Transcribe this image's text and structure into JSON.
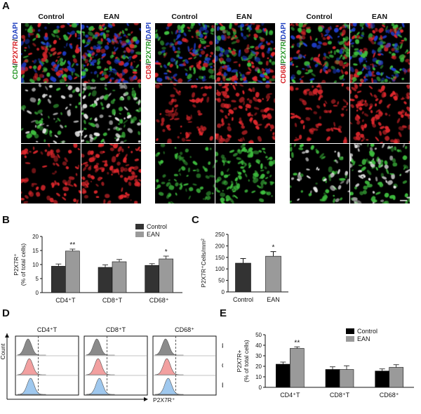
{
  "panels": {
    "a": "A",
    "b": "B",
    "c": "C",
    "d": "D",
    "e": "E"
  },
  "panel_a": {
    "col_headers": [
      "Control",
      "EAN",
      "Control",
      "EAN",
      "Control",
      "EAN"
    ],
    "group1_label": {
      "p1": "CD4",
      "p2": "/",
      "p3": "P2X7R",
      "p4": "/",
      "p5": "DAPI"
    },
    "group2_label": {
      "p1": "CD8",
      "p2": "/",
      "p3": "P2X7R",
      "p4": "/",
      "p5": "DAPI"
    },
    "group3_label": {
      "p1": "CD68",
      "p2": "/",
      "p3": "P2X7R",
      "p4": "/",
      "p5": "DAPI"
    },
    "colors": {
      "red": "#e0282d",
      "green": "#3fbf3f",
      "blue": "#2040d0",
      "white": "#e8e8e8"
    }
  },
  "chart_data": [
    {
      "id": "B",
      "type": "bar",
      "categories": [
        "CD4⁺T",
        "CD8⁺T",
        "CD68⁺"
      ],
      "series": [
        {
          "name": "Control",
          "values": [
            9.4,
            9.0,
            9.7
          ],
          "errors": [
            0.8,
            0.9,
            0.6
          ],
          "color": "#333333"
        },
        {
          "name": "EAN",
          "values": [
            14.8,
            11.0,
            12.0
          ],
          "errors": [
            0.7,
            0.8,
            1.0
          ],
          "color": "#9a9a9a"
        }
      ],
      "ylabel": "P2X7R⁺",
      "ylabel2": "(% of total cells)",
      "ylim": [
        0,
        20
      ],
      "yticks": [
        "0",
        "5",
        "10",
        "15",
        "20"
      ],
      "significance": [
        "**",
        "",
        "*"
      ],
      "legend": "top-right"
    },
    {
      "id": "C",
      "type": "bar",
      "categories": [
        "Control",
        "EAN"
      ],
      "values": [
        125,
        155
      ],
      "errors": [
        20,
        20
      ],
      "colors": [
        "#333333",
        "#9a9a9a"
      ],
      "ylabel": "P2X7R⁺Cells/mm²",
      "ylim": [
        0,
        250
      ],
      "yticks": [
        "0",
        "50",
        "100",
        "150",
        "200",
        "250"
      ],
      "significance": [
        "",
        "*"
      ]
    },
    {
      "id": "E",
      "type": "bar",
      "categories": [
        "CD4⁺T",
        "CD8⁺T",
        "CD68⁺"
      ],
      "series": [
        {
          "name": "Control",
          "values": [
            22,
            17,
            15.5
          ],
          "errors": [
            2.0,
            2.5,
            2.0
          ],
          "color": "#000000"
        },
        {
          "name": "EAN",
          "values": [
            37,
            17,
            19
          ],
          "errors": [
            1.5,
            3.5,
            2.5
          ],
          "color": "#9a9a9a"
        }
      ],
      "ylabel": "P2X7R+",
      "ylabel2": "(% of total cells)",
      "ylim": [
        0,
        50
      ],
      "yticks": [
        "0",
        "10",
        "20",
        "30",
        "40",
        "50"
      ],
      "significance": [
        "**",
        "",
        ""
      ],
      "legend": "top-right"
    }
  ],
  "panel_d": {
    "col_titles": [
      "CD4⁺T",
      "CD8⁺T",
      "CD68⁺"
    ],
    "row_labels": [
      "FMO",
      "Control",
      "EAN"
    ],
    "y_axis_label": "Count",
    "x_axis_label": "P2X7R⁺",
    "colors": {
      "fmo": "#8a8a8a",
      "control": "#f2a0a0",
      "ean": "#9fc8ee"
    }
  }
}
